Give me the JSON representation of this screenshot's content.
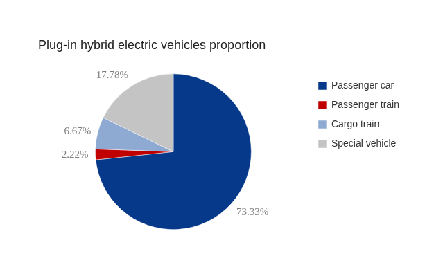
{
  "chart_data": {
    "type": "pie",
    "title": "Plug-in hybrid electric vehicles proportion",
    "categories": [
      "Passenger car",
      "Passenger train",
      "Cargo train",
      "Special vehicle"
    ],
    "values": [
      73.33,
      2.22,
      6.67,
      17.78
    ],
    "value_labels": [
      "73.33%",
      "2.22%",
      "6.67%",
      "17.78%"
    ],
    "colors": [
      "#07398a",
      "#c00000",
      "#8ea9d2",
      "#c4c4c4"
    ],
    "legend": "right",
    "data_labels": true
  }
}
